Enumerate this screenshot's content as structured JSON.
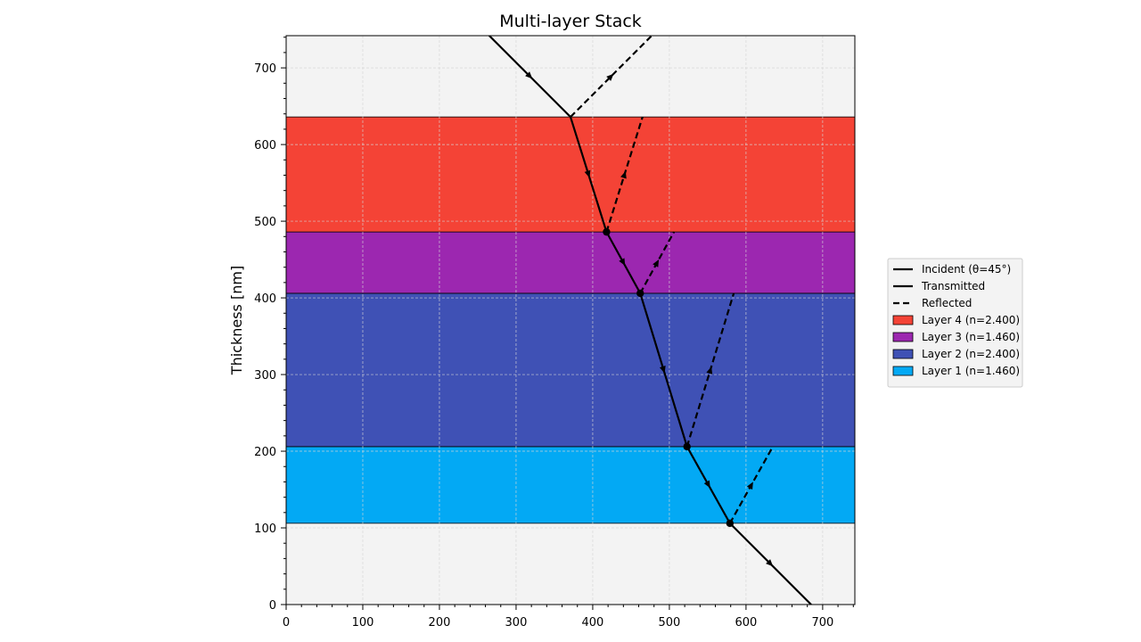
{
  "chart_data": {
    "type": "line",
    "title": "Multi-layer Stack",
    "xlabel": "",
    "ylabel": "Thickness [nm]",
    "xlim": [
      0,
      742
    ],
    "ylim": [
      0,
      742
    ],
    "xticks": [
      0,
      100,
      200,
      300,
      400,
      500,
      600,
      700
    ],
    "yticks": [
      0,
      100,
      200,
      300,
      400,
      500,
      600,
      700
    ],
    "grid": true,
    "legend_position": "outside-right",
    "background_color": "#f3f3f3",
    "layers": [
      {
        "label": "Layer 1 (n=1.460)",
        "n": 1.46,
        "bottom": 106,
        "top": 206,
        "color": "#03a9f4"
      },
      {
        "label": "Layer 2 (n=2.400)",
        "n": 2.4,
        "bottom": 206,
        "top": 406,
        "color": "#3f51b5"
      },
      {
        "label": "Layer 3 (n=1.460)",
        "n": 1.46,
        "bottom": 406,
        "top": 486,
        "color": "#9c27b0"
      },
      {
        "label": "Layer 4 (n=2.400)",
        "n": 2.4,
        "bottom": 486,
        "top": 636,
        "color": "#f44336"
      }
    ],
    "series": [
      {
        "name": "Incident (θ=45°)",
        "style": "solid",
        "x": [
          265,
          371
        ],
        "y": [
          742,
          636
        ]
      },
      {
        "name": "Transmitted",
        "style": "solid",
        "x": [
          371,
          418,
          462,
          523,
          579,
          685
        ],
        "y": [
          636,
          486,
          406,
          206,
          106,
          0
        ]
      }
    ],
    "reflected": {
      "name": "Reflected",
      "style": "dashed",
      "rays": [
        {
          "x": [
            371,
            477
          ],
          "y": [
            636,
            742
          ]
        },
        {
          "x": [
            418,
            465
          ],
          "y": [
            486,
            636
          ]
        },
        {
          "x": [
            462,
            506
          ],
          "y": [
            406,
            486
          ]
        },
        {
          "x": [
            523,
            584
          ],
          "y": [
            206,
            406
          ]
        },
        {
          "x": [
            579,
            635
          ],
          "y": [
            106,
            206
          ]
        }
      ]
    },
    "interface_points": {
      "x": [
        418,
        462,
        523,
        579
      ],
      "y": [
        486,
        406,
        206,
        106
      ]
    },
    "line_color": "#000000"
  }
}
